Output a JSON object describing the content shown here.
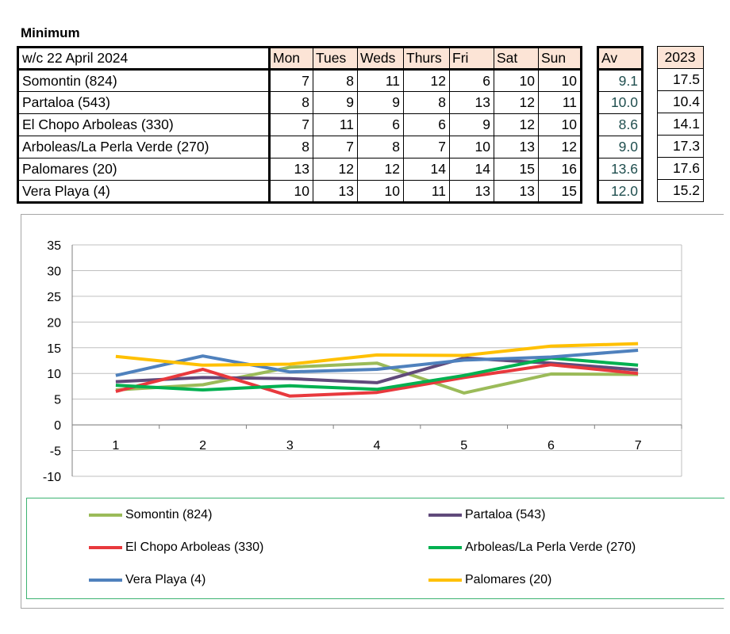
{
  "heading": "Minimum",
  "table": {
    "week_label": "w/c  22 April 2024",
    "days": [
      "Mon",
      "Tues",
      "Weds",
      "Thurs",
      "Fri",
      "Sat",
      "Sun"
    ],
    "av_header": "Av",
    "year_header": "2023",
    "rows": [
      {
        "name": "Somontin (824)",
        "values": [
          "7",
          "8",
          "11",
          "12",
          "6",
          "10",
          "10"
        ],
        "av": "9.1",
        "y2023": "17.5"
      },
      {
        "name": "Partaloa (543)",
        "values": [
          "8",
          "9",
          "9",
          "8",
          "13",
          "12",
          "11"
        ],
        "av": "10.0",
        "y2023": "10.4"
      },
      {
        "name": "El Chopo Arboleas (330)",
        "values": [
          "7",
          "11",
          "6",
          "6",
          "9",
          "12",
          "10"
        ],
        "av": "8.6",
        "y2023": "14.1"
      },
      {
        "name": "Arboleas/La Perla Verde (270)",
        "values": [
          "8",
          "7",
          "8",
          "7",
          "10",
          "13",
          "12"
        ],
        "av": "9.0",
        "y2023": "17.3"
      },
      {
        "name": "Palomares (20)",
        "values": [
          "13",
          "12",
          "12",
          "14",
          "14",
          "15",
          "16"
        ],
        "av": "13.6",
        "y2023": "17.6"
      },
      {
        "name": "Vera Playa (4)",
        "values": [
          "10",
          "13",
          "10",
          "11",
          "13",
          "13",
          "15"
        ],
        "av": "12.0",
        "y2023": "15.2"
      }
    ]
  },
  "chart_data": {
    "type": "line",
    "title": "",
    "xlabel": "",
    "ylabel": "",
    "x": [
      "1",
      "2",
      "3",
      "4",
      "5",
      "6",
      "7"
    ],
    "ylim": [
      -10,
      35
    ],
    "yticks": [
      35,
      30,
      25,
      20,
      15,
      10,
      5,
      0,
      -5,
      -10
    ],
    "grid": true,
    "legend_position": "bottom",
    "series": [
      {
        "name": "Somontin (824)",
        "color": "#9bbb59",
        "values": [
          6.8,
          7.8,
          11.2,
          12.0,
          6.2,
          9.9,
          9.8
        ]
      },
      {
        "name": "Partaloa (543)",
        "color": "#604a7b",
        "values": [
          8.4,
          9.2,
          9.0,
          8.2,
          13.0,
          12.0,
          10.7
        ]
      },
      {
        "name": "El Chopo Arboleas (330)",
        "color": "#e8393d",
        "values": [
          6.5,
          10.8,
          5.6,
          6.3,
          9.2,
          11.7,
          10.0
        ]
      },
      {
        "name": "Arboleas/La Perla Verde (270)",
        "color": "#00b050",
        "values": [
          7.7,
          6.8,
          7.6,
          6.9,
          9.6,
          13.0,
          11.6
        ]
      },
      {
        "name": "Vera Playa (4)",
        "color": "#4f81bd",
        "values": [
          9.6,
          13.4,
          10.3,
          10.8,
          12.6,
          13.2,
          14.5
        ]
      },
      {
        "name": "Palomares (20)",
        "color": "#ffc000",
        "values": [
          13.3,
          11.6,
          11.8,
          13.6,
          13.5,
          15.3,
          15.8
        ]
      }
    ]
  }
}
